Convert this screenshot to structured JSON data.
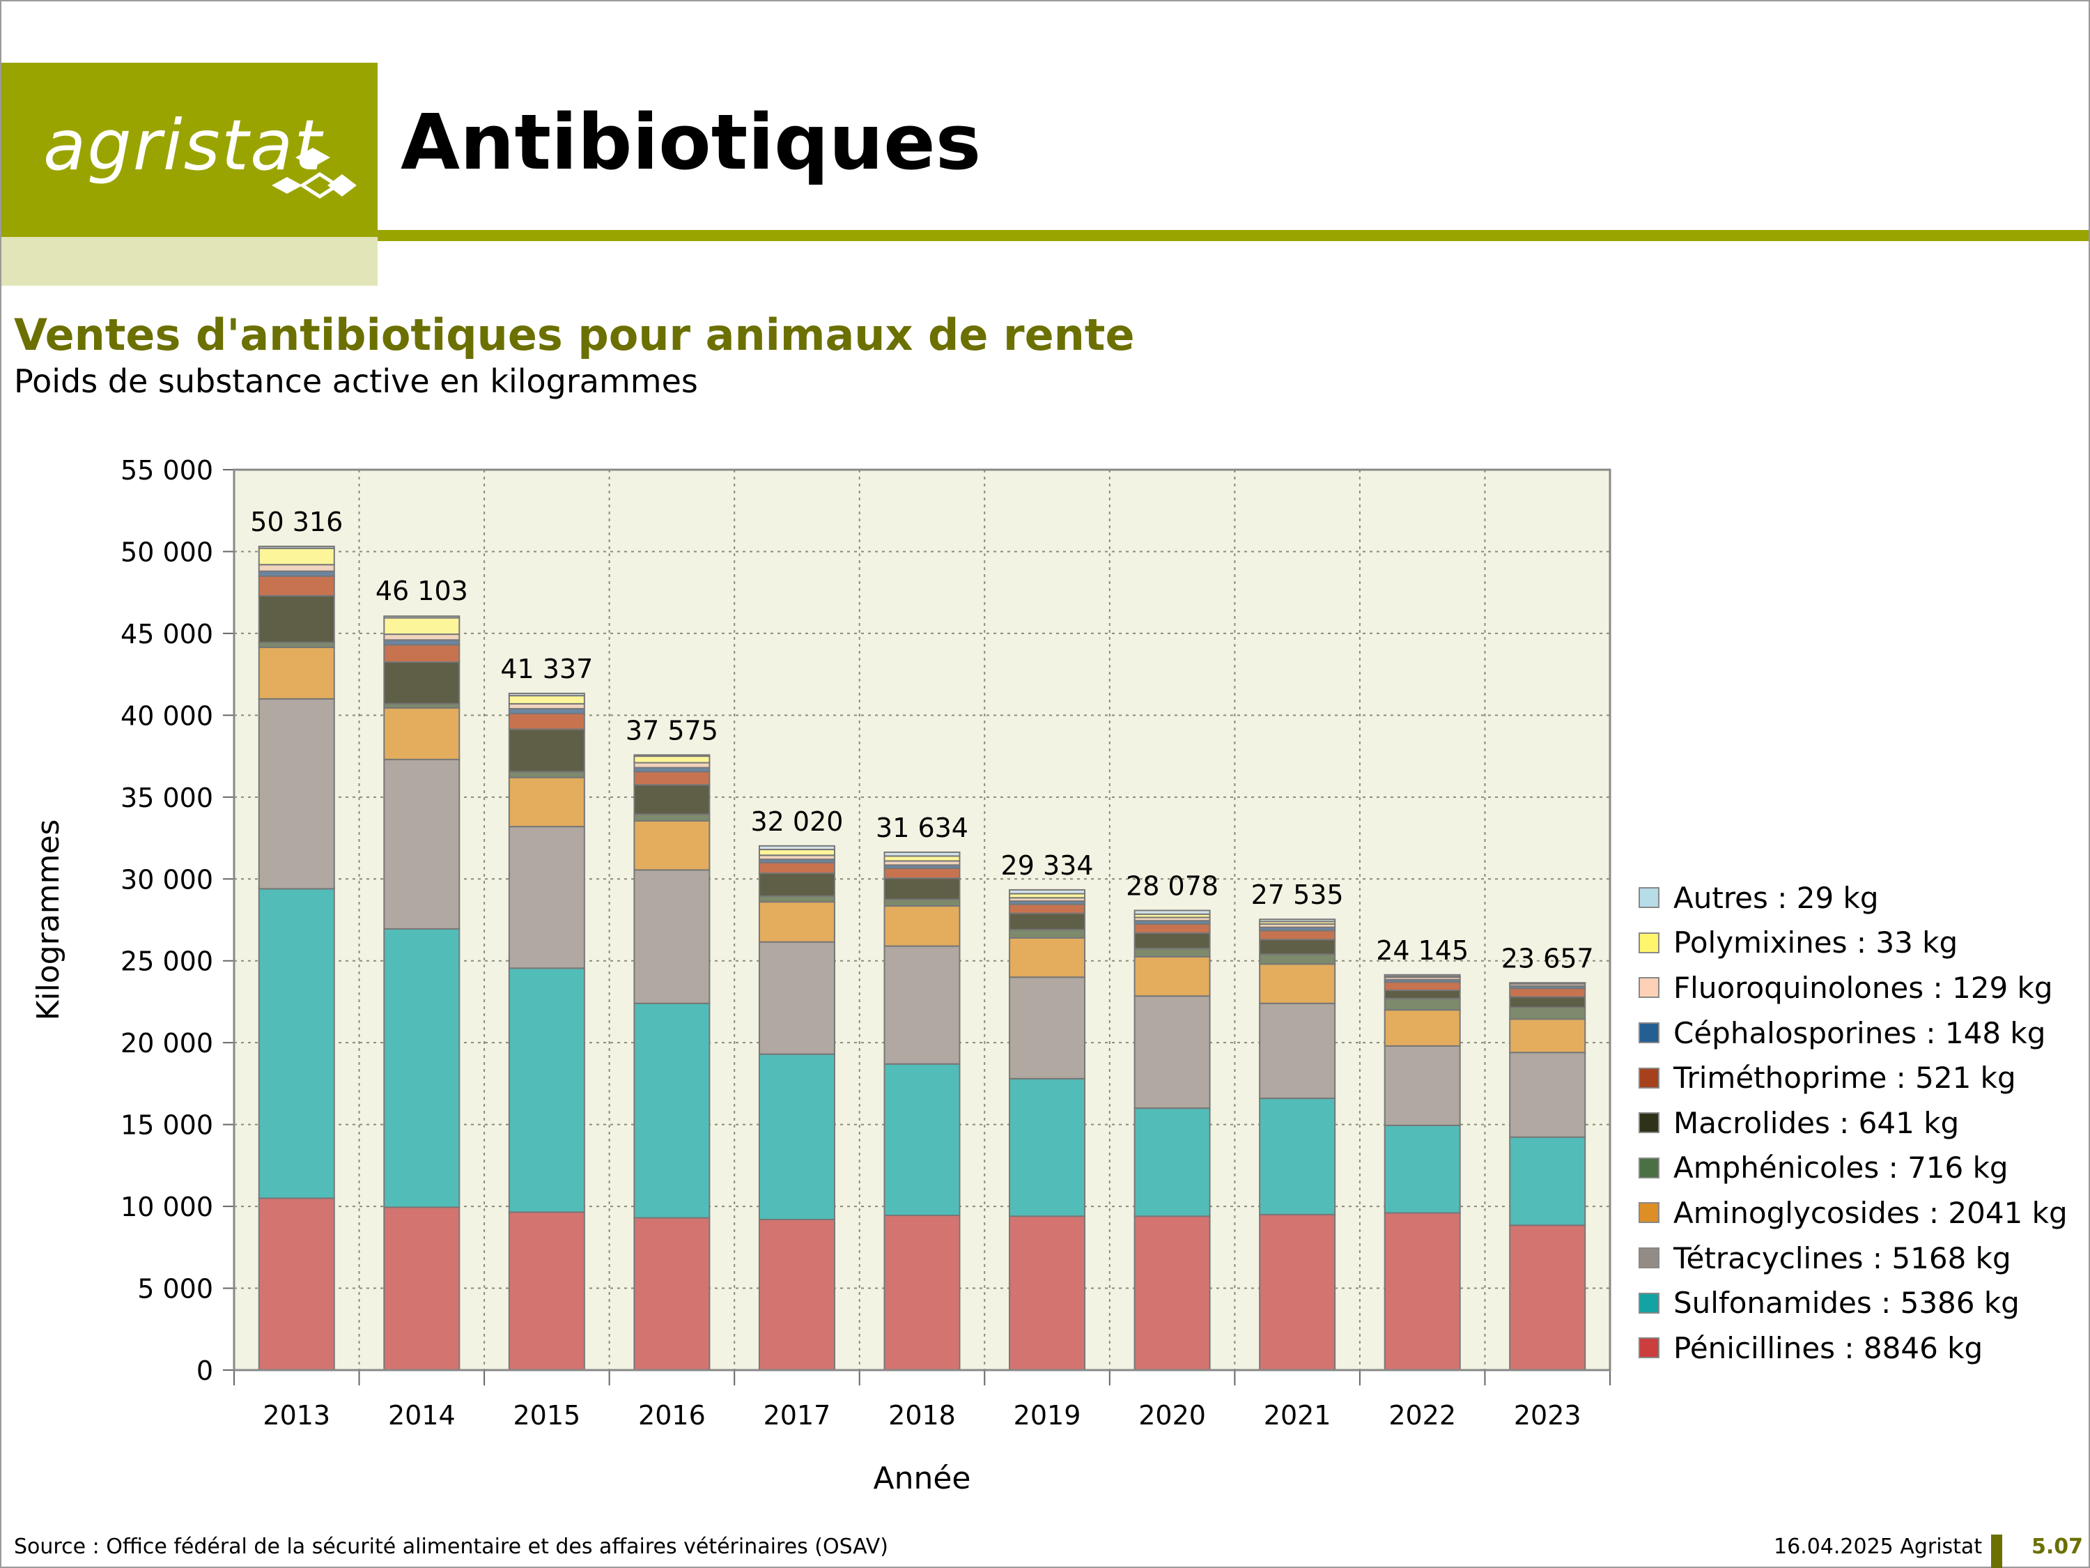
{
  "header": {
    "logo_text": "agristat",
    "title": "Antibiotiques",
    "brand_color": "#9aa400"
  },
  "subtitle": "Ventes d'antibiotiques pour animaux de rente",
  "subsubtitle": "Poids de substance active en kilogrammes",
  "footer": {
    "source": "Source : Office fédéral de la sécurité alimentaire et des affaires vétérinaires (OSAV)",
    "date": "16.04.2025 Agristat",
    "page": "5.07"
  },
  "chart_data": {
    "type": "bar",
    "stacked": true,
    "xlabel": "Année",
    "ylabel": "Kilogrammes",
    "ylim": [
      0,
      55000
    ],
    "yticks": [
      "0",
      "5 000",
      "10 000",
      "15 000",
      "20 000",
      "25 000",
      "30 000",
      "35 000",
      "40 000",
      "45 000",
      "50 000",
      "55 000"
    ],
    "grid": true,
    "legend_position": "right",
    "categories": [
      "2013",
      "2014",
      "2015",
      "2016",
      "2017",
      "2018",
      "2019",
      "2020",
      "2021",
      "2022",
      "2023"
    ],
    "totals": [
      50316,
      46103,
      41337,
      37575,
      32020,
      31634,
      29334,
      28078,
      27535,
      24145,
      23657
    ],
    "total_labels": [
      "50 316",
      "46 103",
      "41 337",
      "37 575",
      "32 020",
      "31 634",
      "29 334",
      "28 078",
      "27 535",
      "24 145",
      "23 657"
    ],
    "series": [
      {
        "name": "Pénicillines",
        "legend": "Pénicillines : 8846 kg",
        "color": "#d47471",
        "legend_color": "#cc3d3d",
        "values": [
          10500,
          9950,
          9650,
          9300,
          9200,
          9450,
          9400,
          9400,
          9500,
          9600,
          8846
        ]
      },
      {
        "name": "Sulfonamides",
        "legend": "Sulfonamides : 5386 kg",
        "color": "#52bdb8",
        "legend_color": "#14a3a3",
        "values": [
          18900,
          17000,
          14900,
          13100,
          10100,
          9250,
          8400,
          6600,
          7100,
          5350,
          5386
        ]
      },
      {
        "name": "Tétracyclines",
        "legend": "Tétracyclines : 5168 kg",
        "color": "#b0a8a1",
        "legend_color": "#938b86",
        "values": [
          11600,
          10350,
          8650,
          8150,
          6850,
          7200,
          6200,
          6850,
          5800,
          4850,
          5168
        ]
      },
      {
        "name": "Aminoglycosides",
        "legend": "Aminoglycosides : 2041 kg",
        "color": "#e3ad5d",
        "legend_color": "#dd8f26",
        "values": [
          3150,
          3150,
          3000,
          3000,
          2450,
          2450,
          2400,
          2400,
          2400,
          2200,
          2041
        ]
      },
      {
        "name": "Amphénicoles",
        "legend": "Amphénicoles : 716 kg",
        "color": "#7d8a6c",
        "legend_color": "#4b7044",
        "values": [
          300,
          250,
          350,
          400,
          350,
          400,
          500,
          500,
          600,
          700,
          716
        ]
      },
      {
        "name": "Macrolides",
        "legend": "Macrolides : 641 kg",
        "color": "#5f5f48",
        "legend_color": "#2f3218",
        "values": [
          2850,
          2550,
          2600,
          1800,
          1400,
          1300,
          1000,
          950,
          900,
          500,
          641
        ]
      },
      {
        "name": "Triméthoprime",
        "legend": "Triméthoprime : 521 kg",
        "color": "#c87350",
        "legend_color": "#a6411b",
        "values": [
          1200,
          1050,
          950,
          800,
          650,
          600,
          550,
          550,
          550,
          500,
          521
        ]
      },
      {
        "name": "Céphalosporines",
        "legend": "Céphalosporines : 148 kg",
        "color": "#6b86a2",
        "legend_color": "#245f93",
        "values": [
          300,
          300,
          300,
          250,
          200,
          200,
          200,
          200,
          200,
          150,
          148
        ]
      },
      {
        "name": "Fluoroquinolones",
        "legend": "Fluoroquinolones : 129 kg",
        "color": "#f1d4bd",
        "legend_color": "#fdd1b6",
        "values": [
          400,
          350,
          300,
          300,
          250,
          250,
          200,
          200,
          200,
          150,
          129
        ]
      },
      {
        "name": "Polymixines",
        "legend": "Polymixines : 33 kg",
        "color": "#fcf59a",
        "legend_color": "#fff66e",
        "values": [
          1000,
          1000,
          500,
          400,
          350,
          300,
          250,
          200,
          150,
          50,
          33
        ]
      },
      {
        "name": "Autres",
        "legend": "Autres : 29 kg",
        "color": "#d2e2e8",
        "legend_color": "#b7dde8",
        "values": [
          116,
          103,
          137,
          75,
          220,
          234,
          234,
          228,
          135,
          95,
          29
        ]
      }
    ]
  }
}
